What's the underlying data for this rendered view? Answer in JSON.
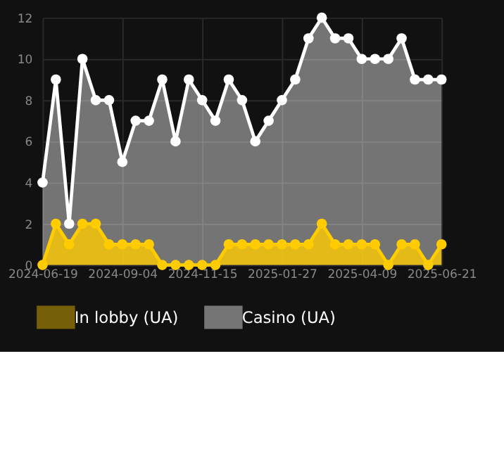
{
  "chart_data": {
    "type": "area",
    "categories": [
      "2024-06-19",
      null,
      null,
      null,
      null,
      null,
      "2024-09-04",
      null,
      null,
      null,
      null,
      null,
      "2024-11-15",
      null,
      null,
      null,
      null,
      null,
      "2025-01-27",
      null,
      null,
      null,
      null,
      null,
      "2025-04-09",
      null,
      null,
      null,
      null,
      null,
      "2025-06-21"
    ],
    "series": [
      {
        "name": "In lobby (UA)",
        "color": "#ffcc00",
        "values": [
          0,
          2,
          1,
          2,
          2,
          1,
          1,
          1,
          1,
          0,
          0,
          0,
          0,
          0,
          1,
          1,
          1,
          1,
          1,
          1,
          1,
          2,
          1,
          1,
          1,
          1,
          0,
          1,
          1,
          0,
          1
        ]
      },
      {
        "name": "Casino (UA)",
        "color": "#ffffff",
        "values": [
          4,
          9,
          2,
          10,
          8,
          8,
          5,
          7,
          7,
          9,
          6,
          9,
          8,
          7,
          9,
          8,
          6,
          7,
          8,
          9,
          11,
          12,
          11,
          11,
          10,
          10,
          10,
          11,
          9,
          9,
          9
        ]
      }
    ],
    "ylim": [
      0,
      12
    ],
    "yticks": [
      0,
      2,
      4,
      6,
      8,
      10,
      12
    ],
    "grid": true,
    "legend": "bottom",
    "marker": "circle",
    "line_style": "solid"
  }
}
